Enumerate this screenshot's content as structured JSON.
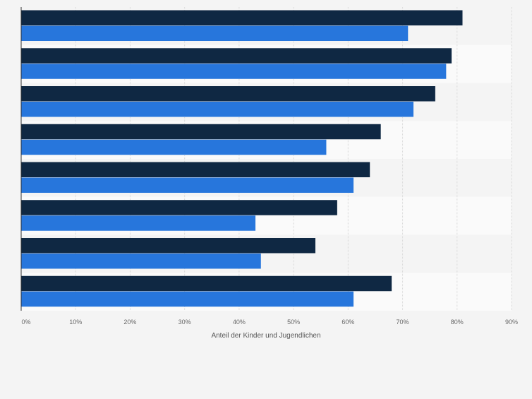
{
  "chart_data": {
    "type": "bar",
    "orientation": "horizontal",
    "categories": [
      "",
      "",
      "",
      "",
      "",
      "",
      "",
      ""
    ],
    "series": [
      {
        "values": [
          81,
          79,
          76,
          66,
          64,
          58,
          54,
          68
        ],
        "color": "#0f2843"
      },
      {
        "values": [
          71,
          78,
          72,
          56,
          61,
          43,
          44,
          61
        ],
        "color": "#2776dc"
      }
    ],
    "xlim": [
      0,
      90
    ],
    "xticks": [
      0,
      10,
      20,
      30,
      40,
      50,
      60,
      70,
      80,
      90
    ],
    "xtick_labels": [
      "0%",
      "10%",
      "20%",
      "30%",
      "40%",
      "50%",
      "60%",
      "70%",
      "80%",
      "90%"
    ],
    "xlabel": "Anteil der Kinder und Jugendlichen",
    "ylabel": "",
    "title": "",
    "grid": "vertical",
    "legend": "none",
    "colors": {
      "background": "#f4f4f4",
      "band_light": "#fafafa",
      "band_dark": "#f4f4f4",
      "grid": "#d8d8d8",
      "axis": "#333333",
      "tick_text": "#666666"
    }
  }
}
